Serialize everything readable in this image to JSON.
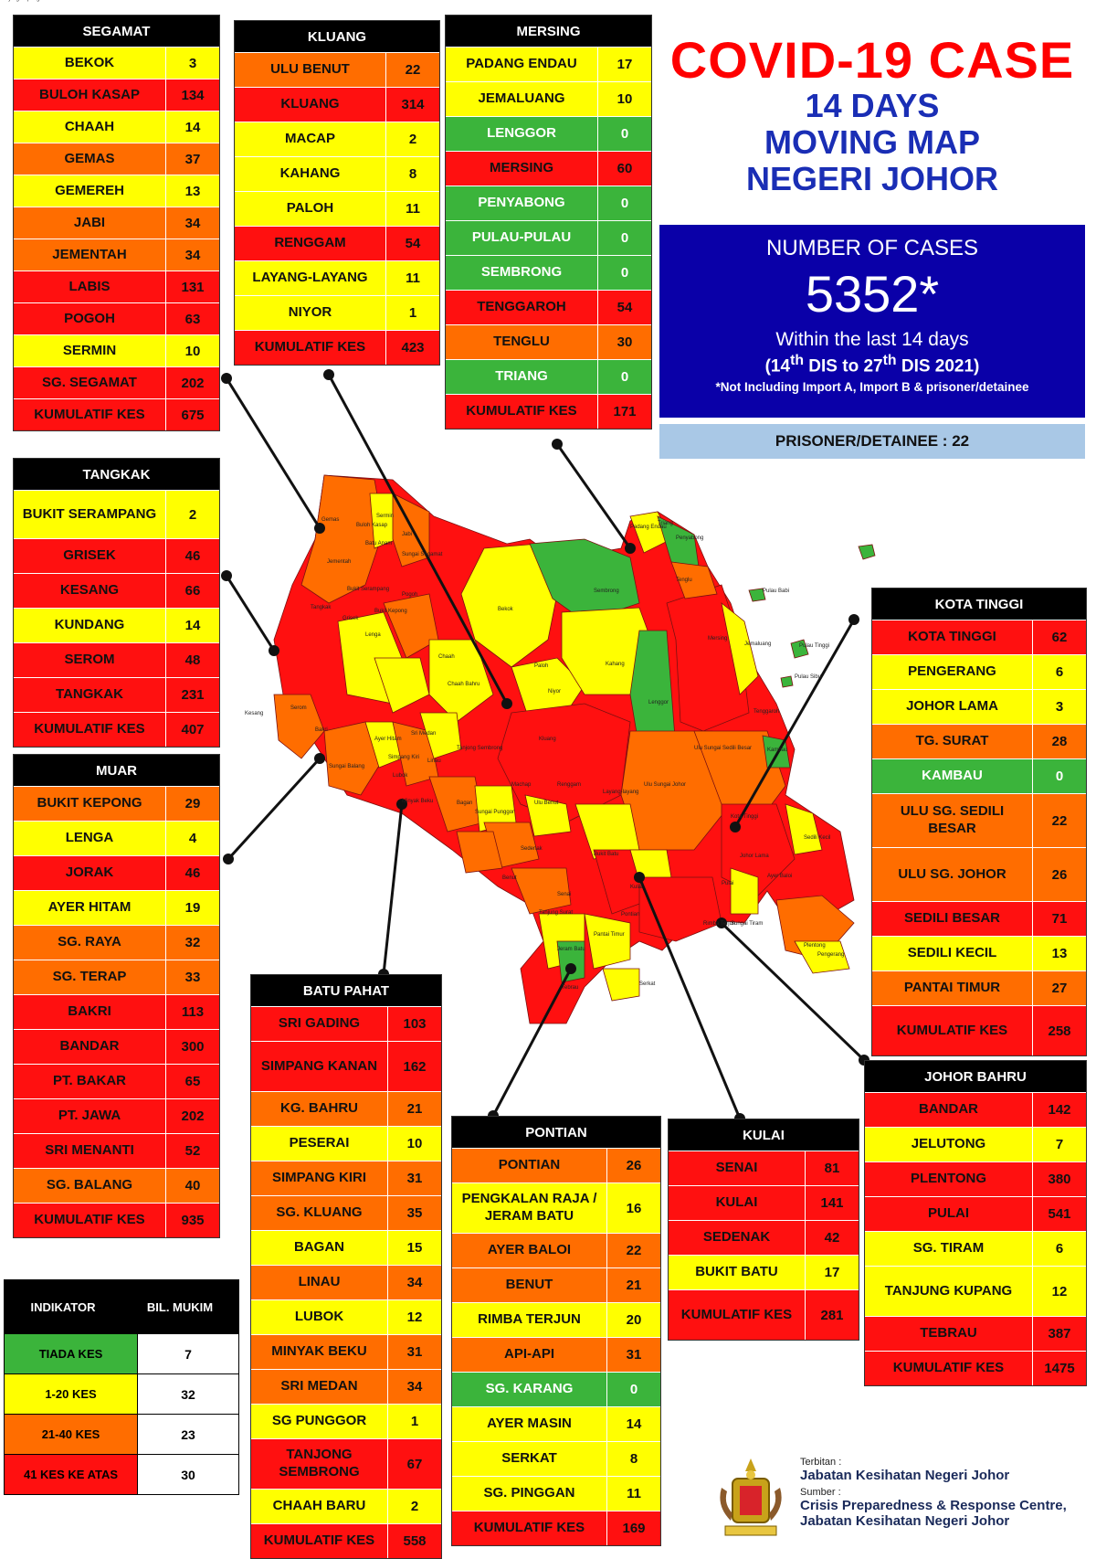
{
  "title": {
    "main": "COVID-19 CASE",
    "sub1": "14 DAYS",
    "sub2": "MOVING MAP",
    "sub3": "NEGERI JOHOR"
  },
  "summary": {
    "label": "NUMBER OF CASES",
    "value": "5352*",
    "within": "Within the last 14 days",
    "range_start": "(14",
    "range_start_sup": "th",
    "range_mid": " DIS to 27",
    "range_end_sup": "th",
    "range_end": " DIS 2021)",
    "note": "*Not Including Import A, Import B & prisoner/detainee",
    "prisoner": "PRISONER/DETAINEE : 22"
  },
  "colors": {
    "green": "#3bb43b",
    "yellow": "#ffff00",
    "orange": "#ff6d00",
    "red": "#ff1010",
    "title_red": "#ff0000",
    "title_blue": "#1a2eb5",
    "summary_blue": "#0a00a8",
    "prisoner_bg": "#a9c8e6"
  },
  "districts": {
    "segamat": {
      "name": "SEGAMAT",
      "rows": [
        {
          "name": "BEKOK",
          "value": "3",
          "level": "yellow"
        },
        {
          "name": "BULOH KASAP",
          "value": "134",
          "level": "red"
        },
        {
          "name": "CHAAH",
          "value": "14",
          "level": "yellow"
        },
        {
          "name": "GEMAS",
          "value": "37",
          "level": "orange"
        },
        {
          "name": "GEMEREH",
          "value": "13",
          "level": "yellow"
        },
        {
          "name": "JABI",
          "value": "34",
          "level": "orange"
        },
        {
          "name": "JEMENTAH",
          "value": "34",
          "level": "orange"
        },
        {
          "name": "LABIS",
          "value": "131",
          "level": "red"
        },
        {
          "name": "POGOH",
          "value": "63",
          "level": "red"
        },
        {
          "name": "SERMIN",
          "value": "10",
          "level": "yellow"
        },
        {
          "name": "SG. SEGAMAT",
          "value": "202",
          "level": "red"
        }
      ],
      "total_label": "KUMULATIF KES",
      "total": "675"
    },
    "kluang": {
      "name": "KLUANG",
      "rows": [
        {
          "name": "ULU BENUT",
          "value": "22",
          "level": "orange"
        },
        {
          "name": "KLUANG",
          "value": "314",
          "level": "red"
        },
        {
          "name": "MACAP",
          "value": "2",
          "level": "yellow"
        },
        {
          "name": "KAHANG",
          "value": "8",
          "level": "yellow"
        },
        {
          "name": "PALOH",
          "value": "11",
          "level": "yellow"
        },
        {
          "name": "RENGGAM",
          "value": "54",
          "level": "red"
        },
        {
          "name": "LAYANG-LAYANG",
          "value": "11",
          "level": "yellow"
        },
        {
          "name": "NIYOR",
          "value": "1",
          "level": "yellow"
        }
      ],
      "total_label": "KUMULATIF KES",
      "total": "423"
    },
    "mersing": {
      "name": "MERSING",
      "rows": [
        {
          "name": "PADANG ENDAU",
          "value": "17",
          "level": "yellow"
        },
        {
          "name": "JEMALUANG",
          "value": "10",
          "level": "yellow"
        },
        {
          "name": "LENGGOR",
          "value": "0",
          "level": "green"
        },
        {
          "name": "MERSING",
          "value": "60",
          "level": "red"
        },
        {
          "name": "PENYABONG",
          "value": "0",
          "level": "green"
        },
        {
          "name": "PULAU-PULAU",
          "value": "0",
          "level": "green"
        },
        {
          "name": "SEMBRONG",
          "value": "0",
          "level": "green"
        },
        {
          "name": "TENGGAROH",
          "value": "54",
          "level": "red"
        },
        {
          "name": "TENGLU",
          "value": "30",
          "level": "orange"
        },
        {
          "name": "TRIANG",
          "value": "0",
          "level": "green"
        }
      ],
      "total_label": "KUMULATIF KES",
      "total": "171"
    },
    "tangkak": {
      "name": "TANGKAK",
      "rows": [
        {
          "name": "BUKIT SERAMPANG",
          "value": "2",
          "level": "yellow"
        },
        {
          "name": "GRISEK",
          "value": "46",
          "level": "red"
        },
        {
          "name": "KESANG",
          "value": "66",
          "level": "red"
        },
        {
          "name": "KUNDANG",
          "value": "14",
          "level": "yellow"
        },
        {
          "name": "SEROM",
          "value": "48",
          "level": "red"
        },
        {
          "name": "TANGKAK",
          "value": "231",
          "level": "red"
        }
      ],
      "total_label": "KUMULATIF KES",
      "total": "407"
    },
    "muar": {
      "name": "MUAR",
      "rows": [
        {
          "name": "BUKIT KEPONG",
          "value": "29",
          "level": "orange"
        },
        {
          "name": "LENGA",
          "value": "4",
          "level": "yellow"
        },
        {
          "name": "JORAK",
          "value": "46",
          "level": "red"
        },
        {
          "name": "AYER HITAM",
          "value": "19",
          "level": "yellow"
        },
        {
          "name": "SG. RAYA",
          "value": "32",
          "level": "orange"
        },
        {
          "name": "SG. TERAP",
          "value": "33",
          "level": "orange"
        },
        {
          "name": "BAKRI",
          "value": "113",
          "level": "red"
        },
        {
          "name": "BANDAR",
          "value": "300",
          "level": "red"
        },
        {
          "name": "PT. BAKAR",
          "value": "65",
          "level": "red"
        },
        {
          "name": "PT. JAWA",
          "value": "202",
          "level": "red"
        },
        {
          "name": "SRI MENANTI",
          "value": "52",
          "level": "red"
        },
        {
          "name": "SG. BALANG",
          "value": "40",
          "level": "orange"
        }
      ],
      "total_label": "KUMULATIF KES",
      "total": "935"
    },
    "kota_tinggi": {
      "name": "KOTA TINGGI",
      "rows": [
        {
          "name": "KOTA TINGGI",
          "value": "62",
          "level": "red"
        },
        {
          "name": "PENGERANG",
          "value": "6",
          "level": "yellow"
        },
        {
          "name": "JOHOR LAMA",
          "value": "3",
          "level": "yellow"
        },
        {
          "name": "TG. SURAT",
          "value": "28",
          "level": "orange"
        },
        {
          "name": "KAMBAU",
          "value": "0",
          "level": "green"
        },
        {
          "name": "ULU SG. SEDILI BESAR",
          "value": "22",
          "level": "orange"
        },
        {
          "name": "ULU  SG. JOHOR",
          "value": "26",
          "level": "orange"
        },
        {
          "name": "SEDILI BESAR",
          "value": "71",
          "level": "red"
        },
        {
          "name": "SEDILI KECIL",
          "value": "13",
          "level": "yellow"
        },
        {
          "name": "PANTAI TIMUR",
          "value": "27",
          "level": "orange"
        }
      ],
      "total_label": "KUMULATIF KES",
      "total": "258"
    },
    "batu_pahat": {
      "name": "BATU PAHAT",
      "rows": [
        {
          "name": "SRI GADING",
          "value": "103",
          "level": "red"
        },
        {
          "name": "SIMPANG KANAN",
          "value": "162",
          "level": "red"
        },
        {
          "name": "KG. BAHRU",
          "value": "21",
          "level": "orange"
        },
        {
          "name": "PESERAI",
          "value": "10",
          "level": "yellow"
        },
        {
          "name": "SIMPANG KIRI",
          "value": "31",
          "level": "orange"
        },
        {
          "name": "SG. KLUANG",
          "value": "35",
          "level": "orange"
        },
        {
          "name": "BAGAN",
          "value": "15",
          "level": "yellow"
        },
        {
          "name": "LINAU",
          "value": "34",
          "level": "orange"
        },
        {
          "name": "LUBOK",
          "value": "12",
          "level": "yellow"
        },
        {
          "name": "MINYAK BEKU",
          "value": "31",
          "level": "orange"
        },
        {
          "name": "SRI MEDAN",
          "value": "34",
          "level": "orange"
        },
        {
          "name": "SG PUNGGOR",
          "value": "1",
          "level": "yellow"
        },
        {
          "name": "TANJONG SEMBRONG",
          "value": "67",
          "level": "red"
        },
        {
          "name": "CHAAH BARU",
          "value": "2",
          "level": "yellow"
        }
      ],
      "total_label": "KUMULATIF KES",
      "total": "558"
    },
    "pontian": {
      "name": "PONTIAN",
      "rows": [
        {
          "name": "PONTIAN",
          "value": "26",
          "level": "orange"
        },
        {
          "name": "PENGKALAN RAJA / JERAM BATU",
          "value": "16",
          "level": "yellow"
        },
        {
          "name": "AYER BALOI",
          "value": "22",
          "level": "orange"
        },
        {
          "name": "BENUT",
          "value": "21",
          "level": "orange"
        },
        {
          "name": "RIMBA TERJUN",
          "value": "20",
          "level": "yellow"
        },
        {
          "name": "API-API",
          "value": "31",
          "level": "orange"
        },
        {
          "name": "SG. KARANG",
          "value": "0",
          "level": "green"
        },
        {
          "name": "AYER MASIN",
          "value": "14",
          "level": "yellow"
        },
        {
          "name": "SERKAT",
          "value": "8",
          "level": "yellow"
        },
        {
          "name": "SG. PINGGAN",
          "value": "11",
          "level": "yellow"
        }
      ],
      "total_label": "KUMULATIF KES",
      "total": "169"
    },
    "kulai": {
      "name": "KULAI",
      "rows": [
        {
          "name": "SENAI",
          "value": "81",
          "level": "red"
        },
        {
          "name": "KULAI",
          "value": "141",
          "level": "red"
        },
        {
          "name": "SEDENAK",
          "value": "42",
          "level": "red"
        },
        {
          "name": "BUKIT BATU",
          "value": "17",
          "level": "yellow"
        }
      ],
      "total_label": "KUMULATIF KES",
      "total": "281"
    },
    "johor_bahru": {
      "name": "JOHOR BAHRU",
      "rows": [
        {
          "name": "BANDAR",
          "value": "142",
          "level": "red"
        },
        {
          "name": "JELUTONG",
          "value": "7",
          "level": "yellow"
        },
        {
          "name": "PLENTONG",
          "value": "380",
          "level": "red"
        },
        {
          "name": "PULAI",
          "value": "541",
          "level": "red"
        },
        {
          "name": "SG. TIRAM",
          "value": "6",
          "level": "yellow"
        },
        {
          "name": "TANJUNG KUPANG",
          "value": "12",
          "level": "yellow"
        },
        {
          "name": "TEBRAU",
          "value": "387",
          "level": "red"
        }
      ],
      "total_label": "KUMULATIF KES",
      "total": "1475"
    }
  },
  "indicator": {
    "head_left": "INDIKATOR",
    "head_right": "BIL. MUKIM",
    "rows": [
      {
        "name": "TIADA KES",
        "value": "7",
        "level": "green"
      },
      {
        "name": "1-20 KES",
        "value": "32",
        "level": "yellow"
      },
      {
        "name": "21-40 KES",
        "value": "23",
        "level": "orange"
      },
      {
        "name": "41 KES KE ATAS",
        "value": "30",
        "level": "red"
      }
    ]
  },
  "footer": {
    "terbitan_label": "Terbitan :",
    "terbitan": "Jabatan Kesihatan Negeri Johor",
    "sumber_label": "Sumber :",
    "sumber_1": "Crisis Preparedness & Response Centre,",
    "sumber_2": "Jabatan Kesihatan Negeri Johor"
  },
  "map_labels": [
    {
      "text": "Gemas",
      "level": "orange"
    },
    {
      "text": "Sermin",
      "level": "yellow"
    },
    {
      "text": "Buloh Kasap",
      "level": "red"
    },
    {
      "text": "Jabi",
      "level": "orange"
    },
    {
      "text": "Batu Anam",
      "level": "red"
    },
    {
      "text": "Sungai Segamat",
      "level": "red"
    },
    {
      "text": "Jementah",
      "level": "orange"
    },
    {
      "text": "Pogoh",
      "level": "red"
    },
    {
      "text": "Bukit Serampang",
      "level": "yellow"
    },
    {
      "text": "Tangkak",
      "level": "red"
    },
    {
      "text": "Bukit Kepong",
      "level": "orange"
    },
    {
      "text": "Grisek",
      "level": "red"
    },
    {
      "text": "Lenga",
      "level": "yellow"
    },
    {
      "text": "Chaah",
      "level": "yellow"
    },
    {
      "text": "Bekok",
      "level": "yellow"
    },
    {
      "text": "Sembrong",
      "level": "green"
    },
    {
      "text": "Paloh",
      "level": "yellow"
    },
    {
      "text": "Kahang",
      "level": "yellow"
    },
    {
      "text": "Niyor",
      "level": "yellow"
    },
    {
      "text": "Lenggor",
      "level": "green"
    },
    {
      "text": "Mersing",
      "level": "red"
    },
    {
      "text": "Jemaluang",
      "level": "yellow"
    },
    {
      "text": "Tenggaroh",
      "level": "red"
    },
    {
      "text": "Padang Endau",
      "level": "yellow"
    },
    {
      "text": "Triang",
      "level": "green"
    },
    {
      "text": "Penyabong",
      "level": "green"
    },
    {
      "text": "Tenglu",
      "level": "orange"
    },
    {
      "text": "Pulau Babi",
      "level": "green"
    },
    {
      "text": "Pulau Tinggi",
      "level": "green"
    },
    {
      "text": "Pulau Sibu",
      "level": "green"
    },
    {
      "text": "Kesang",
      "level": "red"
    },
    {
      "text": "Serom",
      "level": "red"
    },
    {
      "text": "Bakri",
      "level": "red"
    },
    {
      "text": "Ayer Hitam",
      "level": "yellow"
    },
    {
      "text": "Sri Medan",
      "level": "orange"
    },
    {
      "text": "Chaah Bahru",
      "level": "yellow"
    },
    {
      "text": "Kluang",
      "level": "red"
    },
    {
      "text": "Tanjong Sembrong",
      "level": "red"
    },
    {
      "text": "Linau",
      "level": "orange"
    },
    {
      "text": "Sungai Balang",
      "level": "orange"
    },
    {
      "text": "Lubok",
      "level": "yellow"
    },
    {
      "text": "Simpang Kiri",
      "level": "orange"
    },
    {
      "text": "Renggam",
      "level": "red"
    },
    {
      "text": "Kambau",
      "level": "green"
    },
    {
      "text": "Ulu Sungai Sedili Besar",
      "level": "orange"
    },
    {
      "text": "Ulu Sungai Johor",
      "level": "orange"
    },
    {
      "text": "Machap",
      "level": "yellow"
    },
    {
      "text": "Layang-layang",
      "level": "yellow"
    },
    {
      "text": "Kota Tinggi",
      "level": "red"
    },
    {
      "text": "Sedili Kecil",
      "level": "yellow"
    },
    {
      "text": "Minyak Beku",
      "level": "orange"
    },
    {
      "text": "Bagan",
      "level": "yellow"
    },
    {
      "text": "Sungai Punggor",
      "level": "yellow"
    },
    {
      "text": "Ulu Benut",
      "level": "orange"
    },
    {
      "text": "Sedenak",
      "level": "red"
    },
    {
      "text": "Benut",
      "level": "orange"
    },
    {
      "text": "Bukit Batu",
      "level": "yellow"
    },
    {
      "text": "Kulai",
      "level": "red"
    },
    {
      "text": "Senai",
      "level": "red"
    },
    {
      "text": "Ayer Baloi",
      "level": "orange"
    },
    {
      "text": "Johor Lama",
      "level": "yellow"
    },
    {
      "text": "Tanjung Surat",
      "level": "orange"
    },
    {
      "text": "Pontian",
      "level": "orange"
    },
    {
      "text": "Pulai",
      "level": "red"
    },
    {
      "text": "Sungai Tiram",
      "level": "yellow"
    },
    {
      "text": "Plentong",
      "level": "red"
    },
    {
      "text": "Pengerang",
      "level": "yellow"
    },
    {
      "text": "Pantai Timur",
      "level": "orange"
    },
    {
      "text": "Jeram Batu",
      "level": "yellow"
    },
    {
      "text": "Rimba Terjun",
      "level": "yellow"
    },
    {
      "text": "Tebrau",
      "level": "red"
    },
    {
      "text": "Serkat",
      "level": "yellow"
    },
    {
      "text": "Tanjung Kupang",
      "level": "yellow"
    }
  ]
}
